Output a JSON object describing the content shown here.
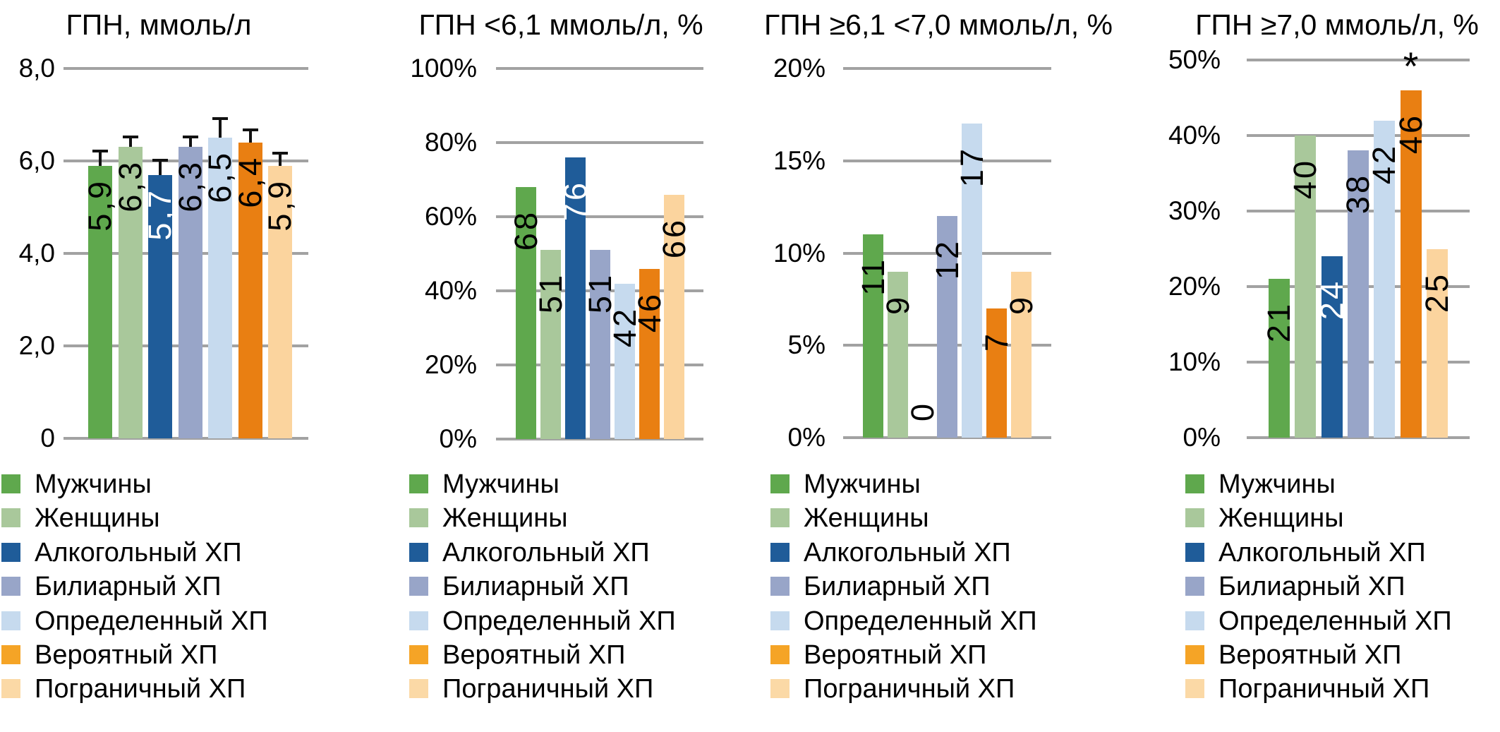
{
  "styles": {
    "background": "#FFFFFF",
    "text_color": "#000000",
    "gridline_color": "#A2A2A2",
    "error_bar_color": "#111111"
  },
  "legend": {
    "labels": [
      "Мужчины",
      "Женщины",
      "Алкогольный ХП",
      "Билиарный ХП",
      "Определенный ХП",
      "Вероятный ХП",
      "Пограничный ХП"
    ],
    "swatch_colors": [
      "#5FA84D",
      "#A9C89B",
      "#1F5C99",
      "#98A5C8",
      "#C6DAEE",
      "#F5A426",
      "#FBD9A6"
    ],
    "position": "bottom-left"
  },
  "series_colors": [
    "#5FA84D",
    "#A9C89B",
    "#1F5C99",
    "#98A5C8",
    "#C6DAEE",
    "#E97F12",
    "#FBD49E"
  ],
  "value_label_colors": [
    "#000000",
    "#000000",
    "#FFFFFF",
    "#000000",
    "#000000",
    "#000000",
    "#000000"
  ],
  "chart_data": [
    {
      "type": "bar",
      "title": "ГПН, ммоль/л",
      "categories": [
        "Мужчины",
        "Женщины",
        "Алкогольный ХП",
        "Билиарный ХП",
        "Определенный ХП",
        "Вероятный ХП",
        "Пограничный ХП"
      ],
      "values": [
        5.9,
        6.3,
        5.7,
        6.3,
        6.5,
        6.4,
        5.9
      ],
      "value_labels": [
        "5,9",
        "6,3",
        "5,7",
        "6,3",
        "6,5",
        "6,4",
        "5,9"
      ],
      "error_upper": [
        0.3,
        0.2,
        0.3,
        0.2,
        0.4,
        0.25,
        0.25
      ],
      "ylim": [
        0,
        8
      ],
      "yticks": [
        {
          "value": 8,
          "label": "8,0"
        },
        {
          "value": 6,
          "label": "6,0"
        },
        {
          "value": 4,
          "label": "4,0"
        },
        {
          "value": 2,
          "label": "2,0"
        },
        {
          "value": 0,
          "label": "0"
        }
      ],
      "grid": true,
      "legend_position": "bottom"
    },
    {
      "type": "bar",
      "title": "ГПН <6,1 ммоль/л, %",
      "categories": [
        "Мужчины",
        "Женщины",
        "Алкогольный ХП",
        "Билиарный ХП",
        "Определенный ХП",
        "Вероятный ХП",
        "Пограничный ХП"
      ],
      "values": [
        68,
        51,
        76,
        51,
        42,
        46,
        66
      ],
      "value_labels": [
        "68",
        "51",
        "76",
        "51",
        "42",
        "46",
        "66"
      ],
      "ylim": [
        0,
        100
      ],
      "yticks": [
        {
          "value": 100,
          "label": "100%"
        },
        {
          "value": 80,
          "label": "80%"
        },
        {
          "value": 60,
          "label": "60%"
        },
        {
          "value": 40,
          "label": "40%"
        },
        {
          "value": 20,
          "label": "20%"
        },
        {
          "value": 0,
          "label": "0%"
        }
      ],
      "grid": true,
      "legend_position": "bottom"
    },
    {
      "type": "bar",
      "title": "ГПН ≥6,1 <7,0 ммоль/л, %",
      "categories": [
        "Мужчины",
        "Женщины",
        "Алкогольный ХП",
        "Билиарный ХП",
        "Определенный ХП",
        "Вероятный ХП",
        "Пограничный ХП"
      ],
      "values": [
        11,
        9,
        0,
        12,
        17,
        7,
        9
      ],
      "value_labels": [
        "11",
        "9",
        "0",
        "12",
        "17",
        "7",
        "9"
      ],
      "ylim": [
        0,
        20
      ],
      "yticks": [
        {
          "value": 20,
          "label": "20%"
        },
        {
          "value": 15,
          "label": "15%"
        },
        {
          "value": 10,
          "label": "10%"
        },
        {
          "value": 5,
          "label": "5%"
        },
        {
          "value": 0,
          "label": "0%"
        }
      ],
      "grid": true,
      "legend_position": "bottom"
    },
    {
      "type": "bar",
      "title": "ГПН ≥7,0 ммоль/л, %",
      "categories": [
        "Мужчины",
        "Женщины",
        "Алкогольный ХП",
        "Билиарный ХП",
        "Определенный ХП",
        "Вероятный ХП",
        "Пограничный ХП"
      ],
      "values": [
        21,
        40,
        24,
        38,
        42,
        46,
        25
      ],
      "value_labels": [
        "21",
        "40",
        "24",
        "38",
        "42",
        "46",
        "25"
      ],
      "ylim": [
        0,
        50
      ],
      "yticks": [
        {
          "value": 50,
          "label": "50%"
        },
        {
          "value": 40,
          "label": "40%"
        },
        {
          "value": 30,
          "label": "30%"
        },
        {
          "value": 20,
          "label": "20%"
        },
        {
          "value": 10,
          "label": "10%"
        },
        {
          "value": 0,
          "label": "0%"
        }
      ],
      "annotations": [
        {
          "series_index": 5,
          "text": "*"
        }
      ],
      "grid": true,
      "legend_position": "bottom"
    }
  ]
}
